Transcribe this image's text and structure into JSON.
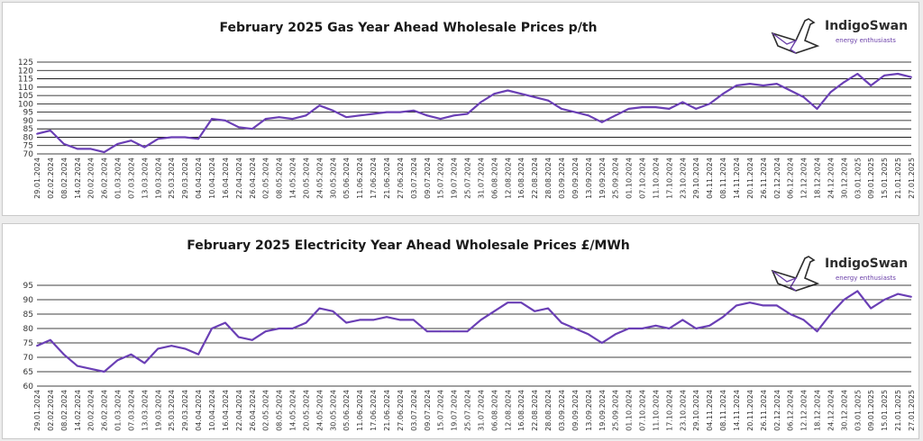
{
  "charts": {
    "gas": {
      "title": "February 2025 Gas Year Ahead Wholesale Prices p/th"
    },
    "elec": {
      "title": "February 2025 Electricity Year Ahead Wholesale Prices £/MWh"
    }
  },
  "logo": {
    "name": "IndigoSwan",
    "tagline": "energy enthusiasts",
    "icon": "swan-icon"
  },
  "colors": {
    "line": "#6a3fb5",
    "grid": "#000000",
    "axis_text": "#333333"
  },
  "chart_data": [
    {
      "type": "line",
      "title": "February 2025 Gas Year Ahead Wholesale Prices p/th",
      "ylim": [
        70,
        125
      ],
      "yticks": [
        70,
        75,
        80,
        85,
        90,
        95,
        100,
        105,
        110,
        115,
        120,
        125
      ],
      "grid": true,
      "categories": [
        "29.01.2024",
        "02.02.2024",
        "08.02.2024",
        "14.02.2024",
        "20.02.2024",
        "26.02.2024",
        "01.03.2024",
        "07.03.2024",
        "13.03.2024",
        "19.03.2024",
        "25.03.2024",
        "29.03.2024",
        "04.04.2024",
        "10.04.2024",
        "16.04.2024",
        "22.04.2024",
        "26.04.2024",
        "02.05.2024",
        "08.05.2024",
        "14.05.2024",
        "20.05.2024",
        "24.05.2024",
        "30.05.2024",
        "05.06.2024",
        "11.06.2024",
        "17.06.2024",
        "21.06.2024",
        "27.06.2024",
        "03.07.2024",
        "09.07.2024",
        "15.07.2024",
        "19.07.2024",
        "25.07.2024",
        "31.07.2024",
        "06.08.2024",
        "12.08.2024",
        "16.08.2024",
        "22.08.2024",
        "28.08.2024",
        "03.09.2024",
        "09.09.2024",
        "13.09.2024",
        "19.09.2024",
        "25.09.2024",
        "01.10.2024",
        "07.10.2024",
        "11.10.2024",
        "17.10.2024",
        "23.10.2024",
        "29.10.2024",
        "04.11.2024",
        "08.11.2024",
        "14.11.2024",
        "20.11.2024",
        "26.11.2024",
        "02.12.2024",
        "06.12.2024",
        "12.12.2024",
        "18.12.2024",
        "24.12.2024",
        "30.12.2024",
        "03.01.2025",
        "09.01.2025",
        "15.01.2025",
        "21.01.2025",
        "27.01.2025"
      ],
      "values": [
        82,
        84,
        76,
        73,
        73,
        71,
        76,
        78,
        74,
        79,
        80,
        80,
        79,
        91,
        90,
        86,
        85,
        91,
        92,
        91,
        93,
        99,
        96,
        92,
        93,
        94,
        95,
        95,
        96,
        93,
        91,
        93,
        94,
        101,
        106,
        108,
        106,
        104,
        102,
        97,
        95,
        93,
        89,
        93,
        97,
        98,
        98,
        97,
        101,
        97,
        100,
        106,
        111,
        112,
        111,
        112,
        108,
        104,
        97,
        107,
        113,
        118,
        111,
        117,
        118,
        116
      ],
      "series": [
        {
          "name": "",
          "values": [
            82,
            84,
            76,
            73,
            73,
            71,
            76,
            78,
            74,
            79,
            80,
            80,
            79,
            91,
            90,
            86,
            85,
            91,
            92,
            91,
            93,
            99,
            96,
            92,
            93,
            94,
            95,
            95,
            96,
            93,
            91,
            93,
            94,
            101,
            106,
            108,
            106,
            104,
            102,
            97,
            95,
            93,
            89,
            93,
            97,
            98,
            98,
            97,
            101,
            97,
            100,
            106,
            111,
            112,
            111,
            112,
            108,
            104,
            97,
            107,
            113,
            118,
            111,
            117,
            118,
            116
          ]
        }
      ]
    },
    {
      "type": "line",
      "title": "February 2025 Electricity Year Ahead Wholesale Prices £/MWh",
      "ylim": [
        60,
        95
      ],
      "yticks": [
        60,
        65,
        70,
        75,
        80,
        85,
        90,
        95
      ],
      "grid": true,
      "categories": [
        "29.01.2024",
        "02.02.2024",
        "08.02.2024",
        "14.02.2024",
        "20.02.2024",
        "26.02.2024",
        "01.03.2024",
        "07.03.2024",
        "13.03.2024",
        "19.03.2024",
        "25.03.2024",
        "29.03.2024",
        "04.04.2024",
        "10.04.2024",
        "16.04.2024",
        "22.04.2024",
        "26.04.2024",
        "02.05.2024",
        "08.05.2024",
        "14.05.2024",
        "20.05.2024",
        "24.05.2024",
        "30.05.2024",
        "05.06.2024",
        "11.06.2024",
        "17.06.2024",
        "21.06.2024",
        "27.06.2024",
        "03.07.2024",
        "09.07.2024",
        "15.07.2024",
        "19.07.2024",
        "25.07.2024",
        "31.07.2024",
        "06.08.2024",
        "12.08.2024",
        "16.08.2024",
        "22.08.2024",
        "28.08.2024",
        "03.09.2024",
        "09.09.2024",
        "13.09.2024",
        "19.09.2024",
        "25.09.2024",
        "01.10.2024",
        "07.10.2024",
        "11.10.2024",
        "17.10.2024",
        "23.10.2024",
        "29.10.2024",
        "04.11.2024",
        "08.11.2024",
        "14.11.2024",
        "20.11.2024",
        "26.11.2024",
        "02.12.2024",
        "06.12.2024",
        "12.12.2024",
        "18.12.2024",
        "24.12.2024",
        "30.12.2024",
        "03.01.2025",
        "09.01.2025",
        "15.01.2025",
        "21.01.2025",
        "27.01.2025"
      ],
      "values": [
        74,
        76,
        71,
        67,
        66,
        65,
        69,
        71,
        68,
        73,
        74,
        73,
        71,
        80,
        82,
        77,
        76,
        79,
        80,
        80,
        82,
        87,
        86,
        82,
        83,
        83,
        84,
        83,
        83,
        79,
        79,
        79,
        79,
        83,
        86,
        89,
        89,
        86,
        87,
        82,
        80,
        78,
        75,
        78,
        80,
        80,
        81,
        80,
        83,
        80,
        81,
        84,
        88,
        89,
        88,
        88,
        85,
        83,
        79,
        85,
        90,
        93,
        87,
        90,
        92,
        91
      ],
      "series": [
        {
          "name": "",
          "values": [
            74,
            76,
            71,
            67,
            66,
            65,
            69,
            71,
            68,
            73,
            74,
            73,
            71,
            80,
            82,
            77,
            76,
            79,
            80,
            80,
            82,
            87,
            86,
            82,
            83,
            83,
            84,
            83,
            83,
            79,
            79,
            79,
            79,
            83,
            86,
            89,
            89,
            86,
            87,
            82,
            80,
            78,
            75,
            78,
            80,
            80,
            81,
            80,
            83,
            80,
            81,
            84,
            88,
            89,
            88,
            88,
            85,
            83,
            79,
            85,
            90,
            93,
            87,
            90,
            92,
            91
          ]
        }
      ]
    }
  ]
}
